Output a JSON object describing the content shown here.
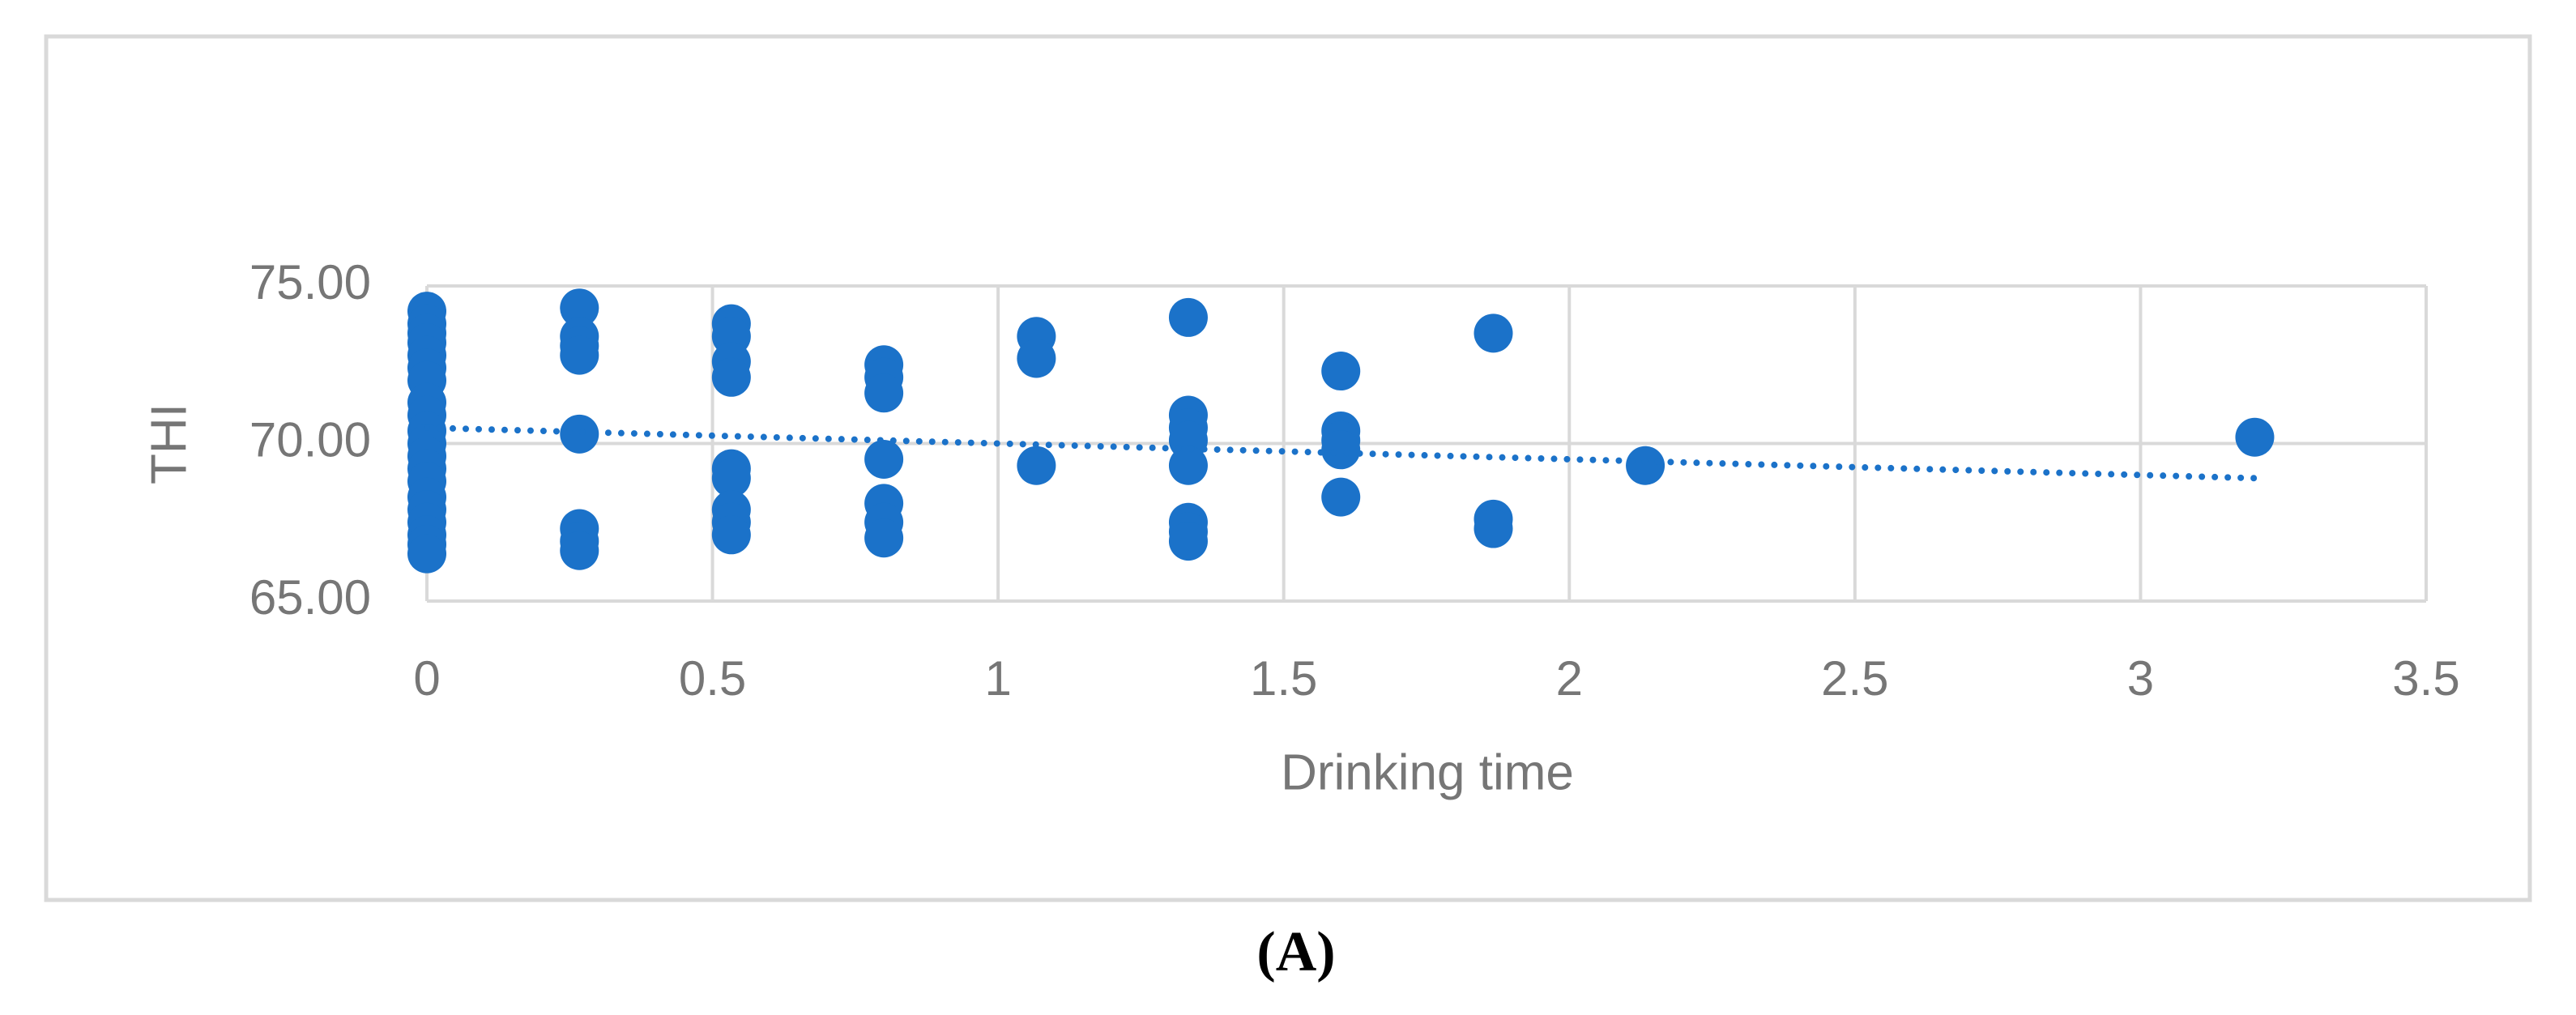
{
  "chart_data": {
    "type": "scatter",
    "x_label": "Drinking time",
    "y_label": "THI",
    "caption": "(A)",
    "color": "#1b72c9",
    "grid": true,
    "xlim": [
      0,
      3.5
    ],
    "xticks": [
      0,
      0.5,
      1,
      1.5,
      2,
      2.5,
      3,
      3.5
    ],
    "ylim": [
      65,
      75
    ],
    "yticks": [
      {
        "value": 65,
        "label": "65.00"
      },
      {
        "value": 70,
        "label": "70.00"
      },
      {
        "value": 75,
        "label": "75.00"
      }
    ],
    "series": [
      {
        "x": [
          0,
          0,
          0,
          0,
          0,
          0,
          0,
          0,
          0,
          0,
          0,
          0,
          0,
          0,
          0,
          0,
          0,
          0,
          0,
          0,
          0.267,
          0.267,
          0.267,
          0.267,
          0.267,
          0.267,
          0.267,
          0.267,
          0.533,
          0.533,
          0.533,
          0.533,
          0.533,
          0.533,
          0.533,
          0.533,
          0.533,
          0.8,
          0.8,
          0.8,
          0.8,
          0.8,
          0.8,
          0.8,
          1.067,
          1.067,
          1.067,
          1.333,
          1.333,
          1.333,
          1.333,
          1.333,
          1.333,
          1.333,
          1.333,
          1.6,
          1.6,
          1.6,
          1.6,
          1.6,
          1.867,
          1.867,
          1.867,
          2.133,
          3.2
        ],
        "values": [
          74.2,
          73.8,
          73.5,
          73.2,
          72.8,
          72.4,
          72.0,
          71.3,
          70.9,
          70.4,
          70.0,
          69.6,
          69.2,
          68.8,
          68.3,
          67.9,
          67.5,
          67.1,
          66.8,
          66.5,
          74.3,
          73.4,
          73.1,
          72.8,
          70.3,
          67.3,
          66.9,
          66.6,
          73.8,
          73.4,
          72.6,
          72.1,
          69.2,
          68.9,
          67.9,
          67.5,
          67.1,
          72.5,
          72.1,
          71.6,
          69.5,
          68.1,
          67.5,
          67.0,
          73.4,
          72.7,
          69.3,
          74.0,
          70.9,
          70.5,
          70.1,
          69.3,
          67.5,
          67.2,
          66.9,
          72.3,
          70.4,
          70.1,
          69.8,
          68.3,
          73.5,
          67.6,
          67.3,
          69.3,
          70.2
        ]
      }
    ],
    "trendline": {
      "x": [
        0,
        3.2
      ],
      "values": [
        70.5,
        68.9
      ]
    }
  }
}
